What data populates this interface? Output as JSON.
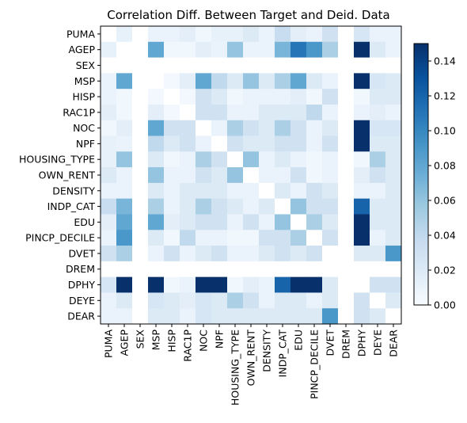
{
  "chart_data": {
    "type": "heatmap",
    "title": "Correlation Diff. Between Target and Deid. Data",
    "xlabel": "",
    "ylabel": "",
    "labels": [
      "PUMA",
      "AGEP",
      "SEX",
      "MSP",
      "HISP",
      "RAC1P",
      "NOC",
      "NPF",
      "HOUSING_TYPE",
      "OWN_RENT",
      "DENSITY",
      "INDP_CAT",
      "EDU",
      "PINCP_DECILE",
      "DVET",
      "DREM",
      "DPHY",
      "DEYE",
      "DEAR"
    ],
    "colorbar": {
      "min": 0.0,
      "max": 0.15,
      "ticks": [
        0.0,
        0.02,
        0.04,
        0.06,
        0.08,
        0.1,
        0.12,
        0.14
      ],
      "colormap": "Blues"
    },
    "matrix": [
      [
        0.0,
        0.012,
        0.0,
        0.01,
        0.01,
        0.015,
        0.005,
        0.012,
        0.012,
        0.02,
        0.01,
        0.035,
        0.015,
        0.01,
        0.03,
        0.0,
        0.025,
        0.01,
        0.01
      ],
      [
        0.012,
        0.0,
        0.0,
        0.08,
        0.005,
        0.005,
        0.015,
        0.01,
        0.06,
        0.01,
        0.01,
        0.07,
        0.11,
        0.09,
        0.05,
        0.0,
        0.15,
        0.02,
        0.01
      ],
      [
        0.0,
        0.0,
        0.0,
        0.0,
        0.0,
        0.0,
        0.0,
        0.0,
        0.0,
        0.0,
        0.0,
        0.0,
        0.0,
        0.0,
        0.0,
        0.0,
        0.0,
        0.0,
        0.0
      ],
      [
        0.01,
        0.08,
        0.0,
        0.0,
        0.003,
        0.015,
        0.08,
        0.04,
        0.02,
        0.06,
        0.02,
        0.05,
        0.08,
        0.02,
        0.01,
        0.0,
        0.15,
        0.025,
        0.02
      ],
      [
        0.01,
        0.005,
        0.0,
        0.003,
        0.0,
        0.003,
        0.03,
        0.02,
        0.005,
        0.01,
        0.01,
        0.01,
        0.015,
        0.005,
        0.03,
        0.0,
        0.005,
        0.02,
        0.02
      ],
      [
        0.015,
        0.005,
        0.0,
        0.015,
        0.003,
        0.0,
        0.03,
        0.03,
        0.01,
        0.01,
        0.02,
        0.02,
        0.02,
        0.04,
        0.01,
        0.0,
        0.01,
        0.015,
        0.01
      ],
      [
        0.005,
        0.015,
        0.0,
        0.08,
        0.03,
        0.03,
        0.0,
        0.01,
        0.05,
        0.03,
        0.02,
        0.05,
        0.03,
        0.01,
        0.02,
        0.0,
        0.15,
        0.025,
        0.025
      ],
      [
        0.012,
        0.01,
        0.0,
        0.04,
        0.02,
        0.03,
        0.01,
        0.0,
        0.03,
        0.02,
        0.02,
        0.03,
        0.03,
        0.01,
        0.03,
        0.0,
        0.15,
        0.02,
        0.02
      ],
      [
        0.012,
        0.06,
        0.0,
        0.02,
        0.005,
        0.01,
        0.05,
        0.03,
        0.0,
        0.06,
        0.01,
        0.02,
        0.01,
        0.005,
        0.01,
        0.0,
        0.005,
        0.05,
        0.02
      ],
      [
        0.02,
        0.01,
        0.0,
        0.06,
        0.01,
        0.01,
        0.03,
        0.02,
        0.06,
        0.0,
        0.01,
        0.01,
        0.03,
        0.005,
        0.01,
        0.0,
        0.015,
        0.03,
        0.02
      ],
      [
        0.01,
        0.01,
        0.0,
        0.02,
        0.01,
        0.02,
        0.02,
        0.02,
        0.01,
        0.01,
        0.0,
        0.02,
        0.01,
        0.03,
        0.02,
        0.0,
        0.01,
        0.01,
        0.02
      ],
      [
        0.035,
        0.07,
        0.0,
        0.05,
        0.01,
        0.02,
        0.05,
        0.03,
        0.02,
        0.01,
        0.02,
        0.0,
        0.06,
        0.03,
        0.03,
        0.0,
        0.12,
        0.02,
        0.02
      ],
      [
        0.015,
        0.08,
        0.0,
        0.08,
        0.015,
        0.02,
        0.03,
        0.03,
        0.01,
        0.03,
        0.01,
        0.06,
        0.0,
        0.05,
        0.02,
        0.0,
        0.15,
        0.02,
        0.02
      ],
      [
        0.01,
        0.09,
        0.0,
        0.02,
        0.005,
        0.04,
        0.01,
        0.01,
        0.005,
        0.005,
        0.03,
        0.03,
        0.05,
        0.0,
        0.03,
        0.0,
        0.15,
        0.01,
        0.02
      ],
      [
        0.03,
        0.05,
        0.0,
        0.01,
        0.03,
        0.01,
        0.02,
        0.03,
        0.01,
        0.01,
        0.02,
        0.03,
        0.02,
        0.03,
        0.0,
        0.0,
        0.02,
        0.02,
        0.09
      ],
      [
        0.0,
        0.0,
        0.0,
        0.0,
        0.0,
        0.0,
        0.0,
        0.0,
        0.0,
        0.0,
        0.0,
        0.0,
        0.0,
        0.0,
        0.0,
        0.0,
        0.0,
        0.0,
        0.0
      ],
      [
        0.025,
        0.15,
        0.0,
        0.15,
        0.005,
        0.01,
        0.15,
        0.15,
        0.005,
        0.015,
        0.01,
        0.12,
        0.15,
        0.15,
        0.02,
        0.0,
        0.0,
        0.03,
        0.03
      ],
      [
        0.01,
        0.02,
        0.0,
        0.025,
        0.02,
        0.015,
        0.025,
        0.02,
        0.05,
        0.03,
        0.01,
        0.02,
        0.02,
        0.01,
        0.02,
        0.0,
        0.03,
        0.0,
        0.02
      ],
      [
        0.01,
        0.01,
        0.0,
        0.02,
        0.02,
        0.01,
        0.025,
        0.02,
        0.02,
        0.02,
        0.02,
        0.02,
        0.02,
        0.02,
        0.09,
        0.0,
        0.03,
        0.02,
        0.0
      ]
    ]
  }
}
